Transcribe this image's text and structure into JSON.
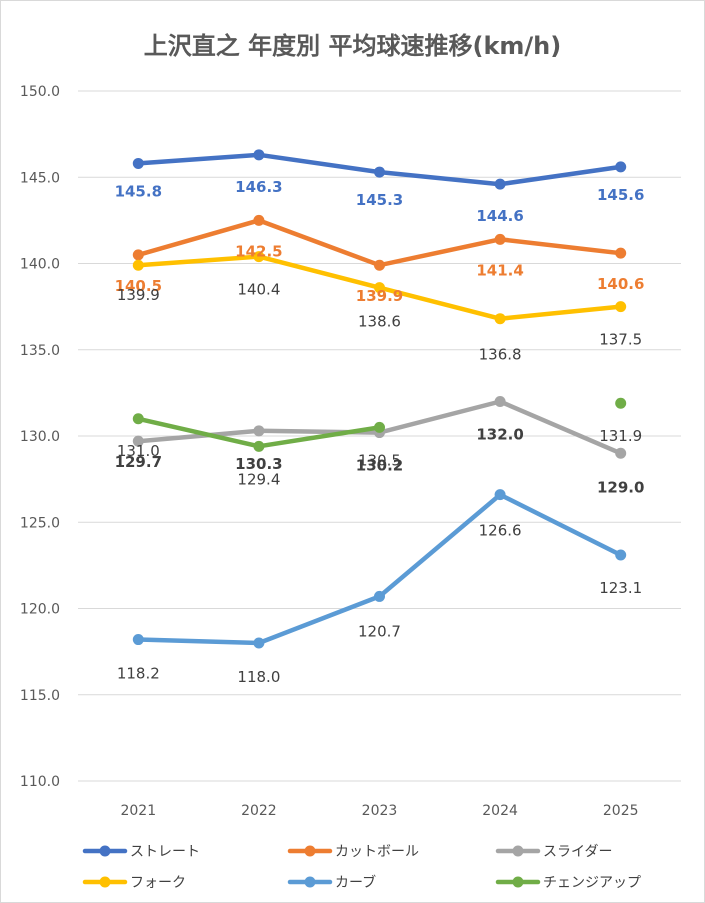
{
  "chart_data": {
    "type": "line",
    "title": "上沢直之 年度別 平均球速推移(km/h)",
    "xlabel": "",
    "ylabel": "",
    "categories": [
      "2021",
      "2022",
      "2023",
      "2024",
      "2025"
    ],
    "ylim": [
      110,
      150
    ],
    "yticks": [
      "150.0",
      "145.0",
      "140.0",
      "135.0",
      "130.0",
      "125.0",
      "120.0",
      "115.0",
      "110.0"
    ],
    "grid": true,
    "legend_position": "bottom",
    "series": [
      {
        "name": "ストレート",
        "color": "#4472c4",
        "values": [
          145.8,
          146.3,
          145.3,
          144.6,
          145.6
        ],
        "labels": [
          "145.8",
          "146.3",
          "145.3",
          "144.6",
          "145.6"
        ],
        "label_color": "#4472c4",
        "label_bold": true
      },
      {
        "name": "カットボール",
        "color": "#ed7d31",
        "values": [
          140.5,
          142.5,
          139.9,
          141.4,
          140.6
        ],
        "labels": [
          "140.5",
          "142.5",
          "139.9",
          "141.4",
          "140.6"
        ],
        "label_color": "#ed7d31",
        "label_bold": true
      },
      {
        "name": "スライダー",
        "color": "#a5a5a5",
        "values": [
          129.7,
          130.3,
          130.2,
          132.0,
          129.0
        ],
        "labels": [
          "129.7",
          "130.3",
          "130.2",
          "132.0",
          "129.0"
        ],
        "label_color": "#404040",
        "label_bold": true
      },
      {
        "name": "フォーク",
        "color": "#ffc000",
        "values": [
          139.9,
          140.4,
          138.6,
          136.8,
          137.5
        ],
        "labels": [
          "139.9",
          "140.4",
          "138.6",
          "136.8",
          "137.5"
        ],
        "label_color": "#404040",
        "label_bold": false
      },
      {
        "name": "カーブ",
        "color": "#5b9bd5",
        "values": [
          118.2,
          118.0,
          120.7,
          126.6,
          123.1
        ],
        "labels": [
          "118.2",
          "118.0",
          "120.7",
          "126.6",
          "123.1"
        ],
        "label_color": "#404040",
        "label_bold": false
      },
      {
        "name": "チェンジアップ",
        "color": "#70ad47",
        "values": [
          131.0,
          129.4,
          130.5,
          null,
          131.9
        ],
        "labels": [
          "131.0",
          "129.4",
          "130.5",
          "",
          "131.9"
        ],
        "label_color": "#404040",
        "label_bold": false
      }
    ]
  }
}
